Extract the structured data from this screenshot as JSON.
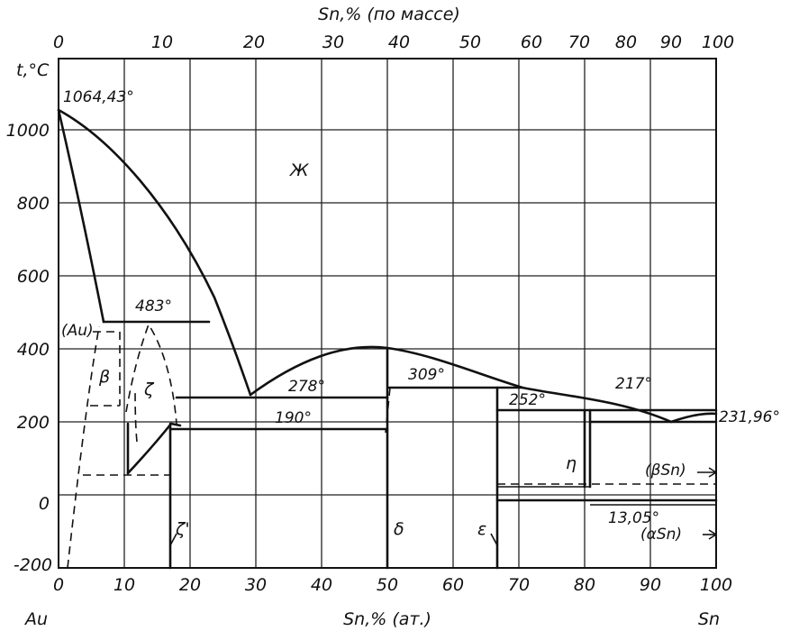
{
  "axes": {
    "y_title": "t,°C",
    "top_title": "Sn,% (по массе)",
    "bottom_title": "Sn,% (ат.)",
    "left_end_label": "Au",
    "right_end_label": "Sn",
    "y_ticks": [
      "1000",
      "800",
      "600",
      "400",
      "200",
      "0",
      "-200"
    ],
    "top_ticks": [
      "0",
      "10",
      "20",
      "30",
      "40",
      "50",
      "60",
      "70",
      "80",
      "90",
      "100"
    ],
    "bottom_ticks": [
      "0",
      "10",
      "20",
      "30",
      "40",
      "50",
      "60",
      "70",
      "80",
      "90",
      "100"
    ]
  },
  "temperatures": {
    "au_melting": "1064,43°",
    "eutectic_483": "483°",
    "peritectic_278": "278°",
    "peritectic_190": "190°",
    "peritectic_309": "309°",
    "peritectic_252": "252°",
    "eutectic_217": "217°",
    "sn_melting": "231,96°",
    "transition_13": "13,05°"
  },
  "phases": {
    "liquid": "Ж",
    "au_solution": "(Au)",
    "beta": "β",
    "zeta": "ζ",
    "zeta_prime": "ζ'",
    "delta": "δ",
    "epsilon": "ε",
    "eta": "η",
    "beta_sn": "(βSn)",
    "alpha_sn": "(αSn)"
  }
}
